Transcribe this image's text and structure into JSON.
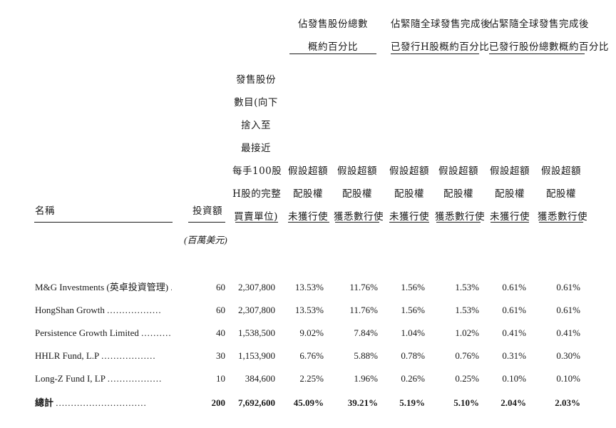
{
  "group_headers": [
    {
      "line1": "佔發售股份總數",
      "line2": "概約百分比"
    },
    {
      "line1": "佔緊隨全球發售完成後",
      "line2": "已發行H股概約百分比"
    },
    {
      "line1": "佔緊隨全球發售完成後",
      "line2": "已發行股份總數概約百分比"
    }
  ],
  "columns": {
    "name": "名稱",
    "investment": "投資額",
    "shares": [
      "發售股份",
      "數目(向下",
      "捨入至",
      "最接近",
      "每手100股",
      "H股的完整",
      "買賣單位)"
    ],
    "not_exercised": [
      "假設超額",
      "配股權",
      "未獲行使"
    ],
    "fully_exercised": [
      "假設超額",
      "配股權",
      "獲悉數行使"
    ]
  },
  "unit_label": "(百萬美元)",
  "rows": [
    {
      "name": "M&G Investments (英卓投資管理)",
      "dots": "....",
      "investment": "60",
      "shares": "2,307,800",
      "v": [
        "13.53%",
        "11.76%",
        "1.56%",
        "1.53%",
        "0.61%",
        "0.61%"
      ]
    },
    {
      "name": "HongShan Growth",
      "dots": "..................",
      "investment": "60",
      "shares": "2,307,800",
      "v": [
        "13.53%",
        "11.76%",
        "1.56%",
        "1.53%",
        "0.61%",
        "0.61%"
      ]
    },
    {
      "name": "Persistence Growth Limited",
      "dots": "..........",
      "investment": "40",
      "shares": "1,538,500",
      "v": [
        "9.02%",
        "7.84%",
        "1.04%",
        "1.02%",
        "0.41%",
        "0.41%"
      ]
    },
    {
      "name": "HHLR Fund, L.P",
      "dots": "..................",
      "investment": "30",
      "shares": "1,153,900",
      "v": [
        "6.76%",
        "5.88%",
        "0.78%",
        "0.76%",
        "0.31%",
        "0.30%"
      ]
    },
    {
      "name": "Long-Z Fund I, LP",
      "dots": "..................",
      "investment": "10",
      "shares": "384,600",
      "v": [
        "2.25%",
        "1.96%",
        "0.26%",
        "0.25%",
        "0.10%",
        "0.10%"
      ]
    }
  ],
  "total": {
    "name": "總計",
    "dots": "..............................",
    "investment": "200",
    "shares": "7,692,600",
    "v": [
      "45.09%",
      "39.21%",
      "5.19%",
      "5.10%",
      "2.04%",
      "2.03%"
    ]
  }
}
